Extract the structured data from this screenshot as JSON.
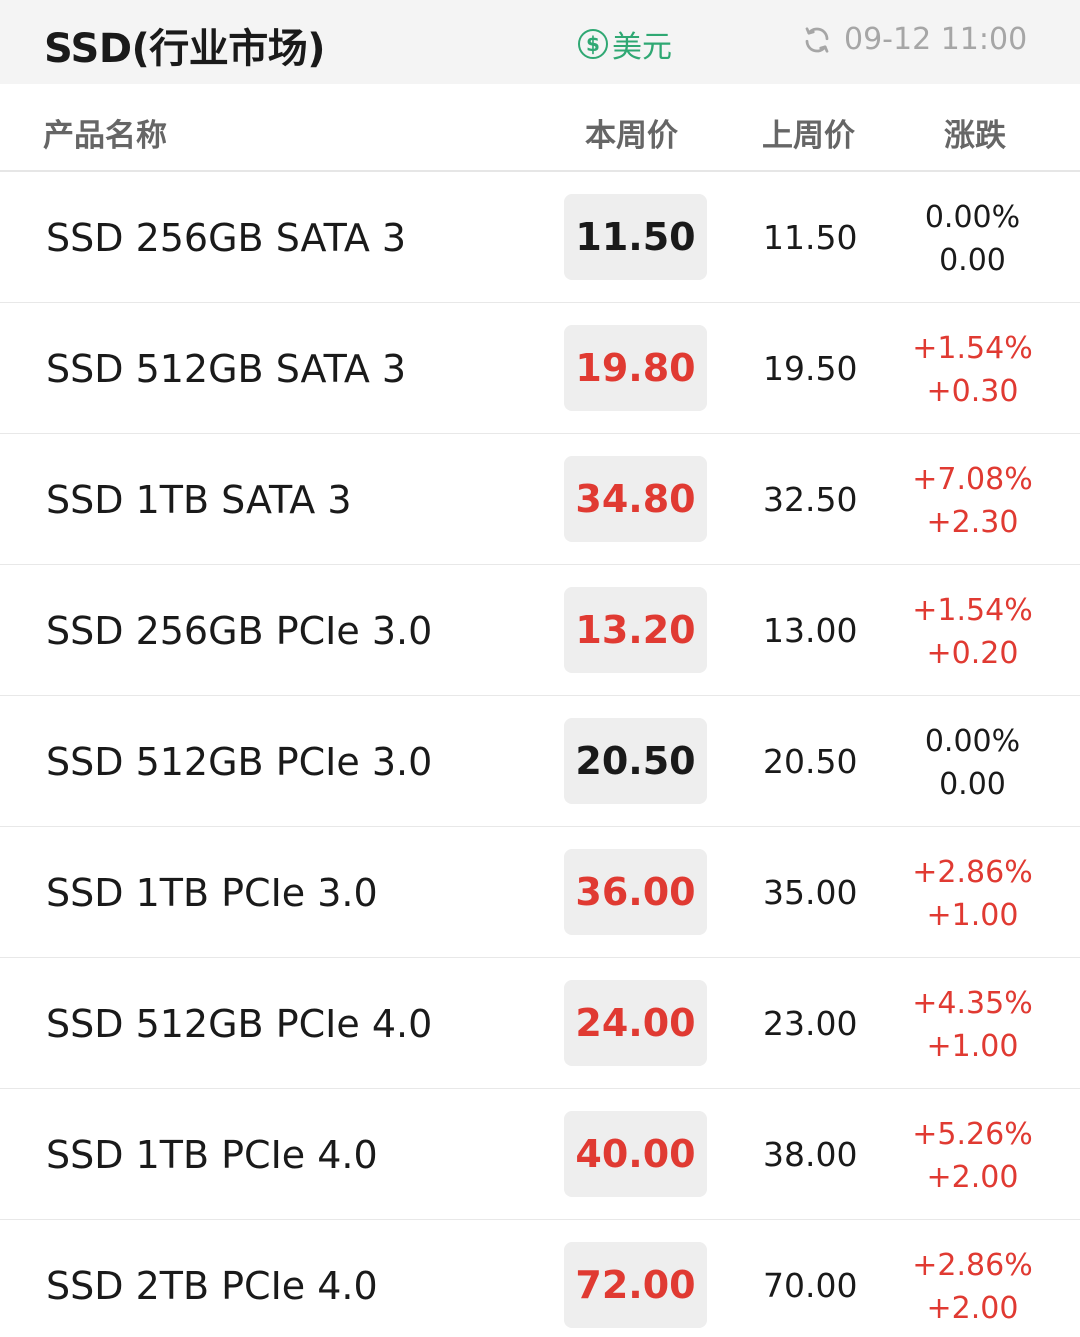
{
  "header": {
    "title": "SSD(行业市场)",
    "currency_symbol": "$",
    "currency_label": "美元",
    "timestamp": "09-12 11:00"
  },
  "columns": {
    "name": "产品名称",
    "this_week": "本周价",
    "last_week": "上周价",
    "change": "涨跌"
  },
  "colors": {
    "up": "#e03a32",
    "flat": "#1a1a1a",
    "accent": "#2fa873"
  },
  "rows": [
    {
      "name": "SSD 256GB SATA 3",
      "this_week": "11.50",
      "last_week": "11.50",
      "change_pct": "0.00%",
      "change_abs": "0.00",
      "trend": "flat"
    },
    {
      "name": "SSD 512GB SATA 3",
      "this_week": "19.80",
      "last_week": "19.50",
      "change_pct": "+1.54%",
      "change_abs": "+0.30",
      "trend": "up"
    },
    {
      "name": "SSD 1TB SATA 3",
      "this_week": "34.80",
      "last_week": "32.50",
      "change_pct": "+7.08%",
      "change_abs": "+2.30",
      "trend": "up"
    },
    {
      "name": "SSD 256GB PCIe 3.0",
      "this_week": "13.20",
      "last_week": "13.00",
      "change_pct": "+1.54%",
      "change_abs": "+0.20",
      "trend": "up"
    },
    {
      "name": "SSD 512GB PCIe 3.0",
      "this_week": "20.50",
      "last_week": "20.50",
      "change_pct": "0.00%",
      "change_abs": "0.00",
      "trend": "flat"
    },
    {
      "name": "SSD 1TB PCIe 3.0",
      "this_week": "36.00",
      "last_week": "35.00",
      "change_pct": "+2.86%",
      "change_abs": "+1.00",
      "trend": "up"
    },
    {
      "name": "SSD 512GB PCIe 4.0",
      "this_week": "24.00",
      "last_week": "23.00",
      "change_pct": "+4.35%",
      "change_abs": "+1.00",
      "trend": "up"
    },
    {
      "name": "SSD 1TB PCIe 4.0",
      "this_week": "40.00",
      "last_week": "38.00",
      "change_pct": "+5.26%",
      "change_abs": "+2.00",
      "trend": "up"
    },
    {
      "name": "SSD 2TB PCIe 4.0",
      "this_week": "72.00",
      "last_week": "70.00",
      "change_pct": "+2.86%",
      "change_abs": "+2.00",
      "trend": "up"
    }
  ]
}
